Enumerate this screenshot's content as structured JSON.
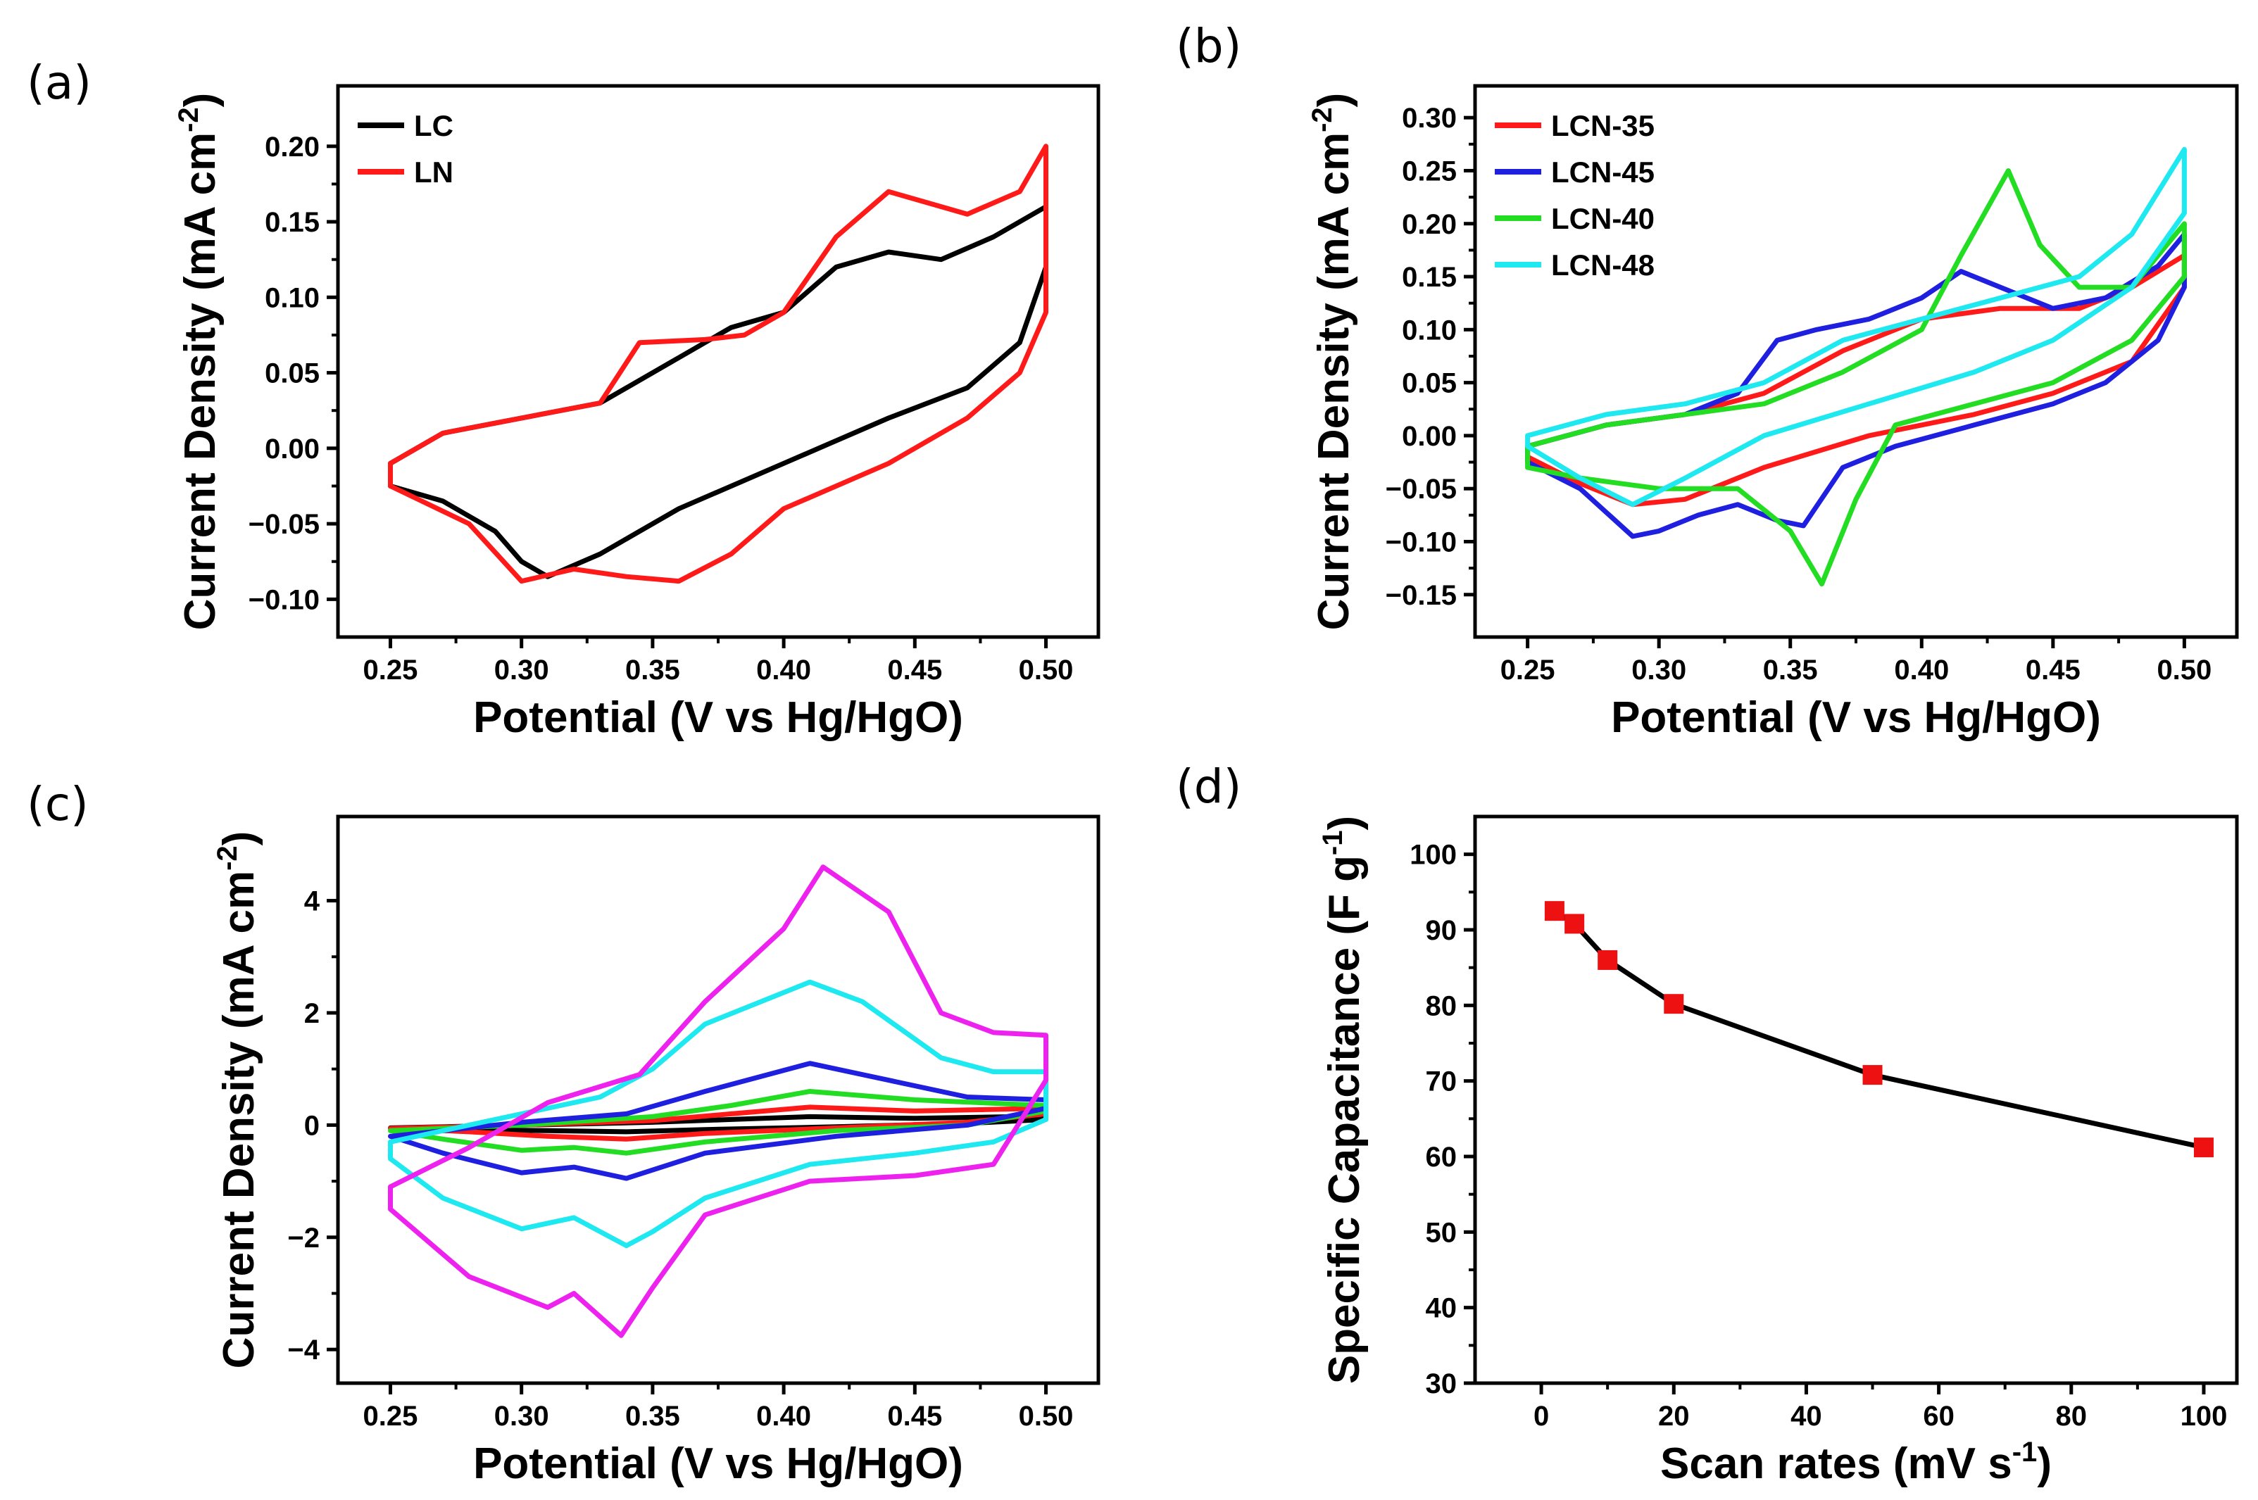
{
  "figure": {
    "panels": [
      {
        "id": "a",
        "label": "(a)",
        "chart_data": {
          "type": "line",
          "title": "",
          "xlabel": "Potential (V vs Hg/HgO)",
          "ylabel": "Current Density (mA cm",
          "ylabel_sup": "-2",
          "ylabel_tail": ")",
          "xlim": [
            0.23,
            0.52
          ],
          "ylim": [
            -0.125,
            0.24
          ],
          "xticks": [
            0.25,
            0.3,
            0.35,
            0.4,
            0.45,
            0.5
          ],
          "xtick_labels": [
            "0.25",
            "0.30",
            "0.35",
            "0.40",
            "0.45",
            "0.50"
          ],
          "yticks": [
            -0.1,
            -0.05,
            0.0,
            0.05,
            0.1,
            0.15,
            0.2
          ],
          "ytick_labels": [
            "−0.10",
            "−0.05",
            "0.00",
            "0.05",
            "0.10",
            "0.15",
            "0.20"
          ],
          "legend_position": "top-left",
          "series": [
            {
              "name": "LC",
              "color": "#000000",
              "x": [
                0.25,
                0.27,
                0.3,
                0.33,
                0.36,
                0.38,
                0.4,
                0.42,
                0.44,
                0.46,
                0.48,
                0.5,
                0.5,
                0.49,
                0.47,
                0.44,
                0.4,
                0.36,
                0.33,
                0.31,
                0.3,
                0.29,
                0.27,
                0.25,
                0.25
              ],
              "y": [
                -0.01,
                0.01,
                0.02,
                0.03,
                0.06,
                0.08,
                0.09,
                0.12,
                0.13,
                0.125,
                0.14,
                0.16,
                0.12,
                0.07,
                0.04,
                0.02,
                -0.01,
                -0.04,
                -0.07,
                -0.085,
                -0.075,
                -0.055,
                -0.035,
                -0.025,
                -0.01
              ]
            },
            {
              "name": "LN",
              "color": "#ff1a1a",
              "x": [
                0.25,
                0.27,
                0.3,
                0.33,
                0.345,
                0.37,
                0.385,
                0.4,
                0.42,
                0.44,
                0.45,
                0.47,
                0.49,
                0.5,
                0.5,
                0.49,
                0.47,
                0.44,
                0.4,
                0.38,
                0.36,
                0.34,
                0.32,
                0.3,
                0.28,
                0.25,
                0.25
              ],
              "y": [
                -0.01,
                0.01,
                0.02,
                0.03,
                0.07,
                0.072,
                0.075,
                0.09,
                0.14,
                0.17,
                0.165,
                0.155,
                0.17,
                0.2,
                0.09,
                0.05,
                0.02,
                -0.01,
                -0.04,
                -0.07,
                -0.088,
                -0.085,
                -0.08,
                -0.088,
                -0.05,
                -0.025,
                -0.01
              ]
            }
          ]
        }
      },
      {
        "id": "b",
        "label": "(b)",
        "chart_data": {
          "type": "line",
          "title": "",
          "xlabel": "Potential (V vs Hg/HgO)",
          "ylabel": "Current Density (mA cm",
          "ylabel_sup": "-2",
          "ylabel_tail": ")",
          "xlim": [
            0.23,
            0.52
          ],
          "ylim": [
            -0.19,
            0.33
          ],
          "xticks": [
            0.25,
            0.3,
            0.35,
            0.4,
            0.45,
            0.5
          ],
          "xtick_labels": [
            "0.25",
            "0.30",
            "0.35",
            "0.40",
            "0.45",
            "0.50"
          ],
          "yticks": [
            -0.15,
            -0.1,
            -0.05,
            0.0,
            0.05,
            0.1,
            0.15,
            0.2,
            0.25,
            0.3
          ],
          "ytick_labels": [
            "−0.15",
            "−0.10",
            "−0.05",
            "0.00",
            "0.05",
            "0.10",
            "0.15",
            "0.20",
            "0.25",
            "0.30"
          ],
          "legend_position": "top-left",
          "series": [
            {
              "name": "LCN-35",
              "color": "#ff1a1a",
              "x": [
                0.25,
                0.28,
                0.31,
                0.34,
                0.37,
                0.4,
                0.43,
                0.46,
                0.48,
                0.5,
                0.5,
                0.48,
                0.45,
                0.42,
                0.38,
                0.34,
                0.31,
                0.29,
                0.27,
                0.25,
                0.25
              ],
              "y": [
                -0.01,
                0.01,
                0.02,
                0.04,
                0.08,
                0.11,
                0.12,
                0.12,
                0.14,
                0.17,
                0.14,
                0.07,
                0.04,
                0.02,
                0.0,
                -0.03,
                -0.06,
                -0.065,
                -0.045,
                -0.02,
                -0.01
              ]
            },
            {
              "name": "LCN-45",
              "color": "#1f1fe0",
              "x": [
                0.25,
                0.28,
                0.31,
                0.33,
                0.345,
                0.36,
                0.38,
                0.4,
                0.415,
                0.43,
                0.45,
                0.47,
                0.49,
                0.5,
                0.5,
                0.49,
                0.47,
                0.45,
                0.42,
                0.39,
                0.37,
                0.355,
                0.345,
                0.33,
                0.315,
                0.3,
                0.29,
                0.27,
                0.25,
                0.25
              ],
              "y": [
                -0.01,
                0.01,
                0.02,
                0.04,
                0.09,
                0.1,
                0.11,
                0.13,
                0.155,
                0.14,
                0.12,
                0.13,
                0.16,
                0.19,
                0.14,
                0.09,
                0.05,
                0.03,
                0.01,
                -0.01,
                -0.03,
                -0.085,
                -0.08,
                -0.065,
                -0.075,
                -0.09,
                -0.095,
                -0.05,
                -0.025,
                -0.01
              ]
            },
            {
              "name": "LCN-40",
              "color": "#22dd22",
              "x": [
                0.25,
                0.28,
                0.31,
                0.34,
                0.37,
                0.4,
                0.415,
                0.433,
                0.445,
                0.46,
                0.48,
                0.5,
                0.5,
                0.48,
                0.45,
                0.42,
                0.39,
                0.375,
                0.362,
                0.35,
                0.33,
                0.3,
                0.27,
                0.25,
                0.25
              ],
              "y": [
                -0.01,
                0.01,
                0.02,
                0.03,
                0.06,
                0.1,
                0.17,
                0.25,
                0.18,
                0.14,
                0.14,
                0.2,
                0.15,
                0.09,
                0.05,
                0.03,
                0.01,
                -0.06,
                -0.14,
                -0.09,
                -0.05,
                -0.05,
                -0.04,
                -0.03,
                -0.01
              ]
            },
            {
              "name": "LCN-48",
              "color": "#1ee8f0",
              "x": [
                0.25,
                0.28,
                0.31,
                0.34,
                0.37,
                0.4,
                0.43,
                0.46,
                0.48,
                0.5,
                0.5,
                0.48,
                0.45,
                0.42,
                0.38,
                0.34,
                0.31,
                0.29,
                0.27,
                0.25,
                0.25
              ],
              "y": [
                0.0,
                0.02,
                0.03,
                0.05,
                0.09,
                0.11,
                0.13,
                0.15,
                0.19,
                0.27,
                0.21,
                0.14,
                0.09,
                0.06,
                0.03,
                0.0,
                -0.04,
                -0.065,
                -0.04,
                -0.01,
                0.0
              ]
            }
          ]
        }
      },
      {
        "id": "c",
        "label": "(c)",
        "chart_data": {
          "type": "line",
          "title": "",
          "xlabel": "Potential (V vs Hg/HgO)",
          "ylabel": "Current Density (mA cm",
          "ylabel_sup": "-2",
          "ylabel_tail": ")",
          "xlim": [
            0.23,
            0.52
          ],
          "ylim": [
            -4.6,
            5.5
          ],
          "xticks": [
            0.25,
            0.3,
            0.35,
            0.4,
            0.45,
            0.5
          ],
          "xtick_labels": [
            "0.25",
            "0.30",
            "0.35",
            "0.40",
            "0.45",
            "0.50"
          ],
          "yticks": [
            -4,
            -2,
            0,
            2,
            4
          ],
          "ytick_labels": [
            "−4",
            "−2",
            "0",
            "2",
            "4"
          ],
          "legend_position": "none",
          "series": [
            {
              "name": "",
              "color": "#000000",
              "x": [
                0.25,
                0.3,
                0.35,
                0.38,
                0.41,
                0.45,
                0.5,
                0.5,
                0.47,
                0.42,
                0.37,
                0.34,
                0.31,
                0.28,
                0.25,
                0.25
              ],
              "y": [
                -0.05,
                0.0,
                0.05,
                0.1,
                0.15,
                0.12,
                0.16,
                0.1,
                0.03,
                -0.03,
                -0.08,
                -0.12,
                -0.1,
                -0.08,
                -0.05,
                -0.05
              ]
            },
            {
              "name": "",
              "color": "#ff1a1a",
              "x": [
                0.25,
                0.3,
                0.35,
                0.38,
                0.41,
                0.45,
                0.5,
                0.5,
                0.47,
                0.42,
                0.37,
                0.34,
                0.31,
                0.28,
                0.25,
                0.25
              ],
              "y": [
                -0.06,
                0.0,
                0.08,
                0.2,
                0.32,
                0.25,
                0.3,
                0.2,
                0.05,
                -0.05,
                -0.15,
                -0.25,
                -0.2,
                -0.12,
                -0.06,
                -0.06
              ]
            },
            {
              "name": "",
              "color": "#22dd22",
              "x": [
                0.25,
                0.3,
                0.35,
                0.38,
                0.41,
                0.45,
                0.5,
                0.5,
                0.47,
                0.42,
                0.37,
                0.34,
                0.32,
                0.3,
                0.27,
                0.25,
                0.25
              ],
              "y": [
                -0.1,
                0.0,
                0.15,
                0.35,
                0.6,
                0.45,
                0.35,
                0.25,
                0.0,
                -0.1,
                -0.3,
                -0.5,
                -0.4,
                -0.45,
                -0.25,
                -0.1,
                -0.1
              ]
            },
            {
              "name": "",
              "color": "#1f1fe0",
              "x": [
                0.25,
                0.3,
                0.34,
                0.37,
                0.41,
                0.44,
                0.47,
                0.5,
                0.5,
                0.47,
                0.42,
                0.37,
                0.34,
                0.32,
                0.3,
                0.27,
                0.25,
                0.25
              ],
              "y": [
                -0.2,
                0.05,
                0.2,
                0.6,
                1.1,
                0.8,
                0.5,
                0.45,
                0.3,
                0.0,
                -0.2,
                -0.5,
                -0.95,
                -0.75,
                -0.85,
                -0.5,
                -0.2,
                -0.2
              ]
            },
            {
              "name": "",
              "color": "#1ee8f0",
              "x": [
                0.25,
                0.3,
                0.33,
                0.35,
                0.37,
                0.41,
                0.43,
                0.46,
                0.48,
                0.5,
                0.5,
                0.48,
                0.45,
                0.41,
                0.37,
                0.35,
                0.34,
                0.32,
                0.3,
                0.27,
                0.25,
                0.25
              ],
              "y": [
                -0.3,
                0.2,
                0.5,
                1.0,
                1.8,
                2.55,
                2.2,
                1.2,
                0.95,
                0.95,
                0.1,
                -0.3,
                -0.5,
                -0.7,
                -1.3,
                -1.9,
                -2.15,
                -1.65,
                -1.85,
                -1.3,
                -0.6,
                -0.3
              ]
            },
            {
              "name": "",
              "color": "#ee22ee",
              "x": [
                0.25,
                0.28,
                0.31,
                0.345,
                0.37,
                0.4,
                0.415,
                0.44,
                0.46,
                0.48,
                0.5,
                0.5,
                0.48,
                0.45,
                0.41,
                0.37,
                0.35,
                0.338,
                0.32,
                0.31,
                0.28,
                0.25,
                0.25
              ],
              "y": [
                -1.1,
                -0.4,
                0.4,
                0.9,
                2.2,
                3.5,
                4.6,
                3.8,
                2.0,
                1.65,
                1.6,
                0.8,
                -0.7,
                -0.9,
                -1.0,
                -1.6,
                -2.9,
                -3.75,
                -3.0,
                -3.25,
                -2.7,
                -1.5,
                -1.1
              ]
            }
          ]
        }
      },
      {
        "id": "d",
        "label": "(d)",
        "chart_data": {
          "type": "line",
          "title": "",
          "xlabel": "Scan rates (mV s",
          "xlabel_sup": "-1",
          "xlabel_tail": ")",
          "ylabel": "Specific Capacitance (F g",
          "ylabel_sup": "-1",
          "ylabel_tail": ")",
          "xlim": [
            -10,
            105
          ],
          "ylim": [
            30,
            105
          ],
          "xticks": [
            0,
            20,
            40,
            60,
            80,
            100
          ],
          "xtick_labels": [
            "0",
            "20",
            "40",
            "60",
            "80",
            "100"
          ],
          "yticks": [
            30,
            40,
            50,
            60,
            70,
            80,
            90,
            100
          ],
          "ytick_labels": [
            "30",
            "40",
            "50",
            "60",
            "70",
            "80",
            "90",
            "100"
          ],
          "legend_position": "none",
          "series": [
            {
              "name": "",
              "color": "#000000",
              "marker": "square",
              "marker_color": "#ee1111",
              "x": [
                2,
                5,
                10,
                20,
                50,
                100
              ],
              "y": [
                92.5,
                90.8,
                86,
                80.2,
                70.8,
                61.2
              ]
            }
          ]
        }
      }
    ]
  }
}
